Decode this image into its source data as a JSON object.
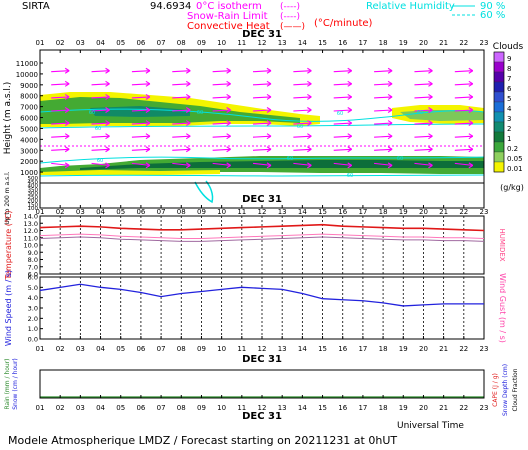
{
  "header": {
    "station": "SIRTA",
    "altitude": "94.6934",
    "legend_isotherm": "0°C isotherm",
    "legend_isotherm_line": "(----)",
    "legend_snow_rain": "Snow-Rain Limit",
    "legend_snow_rain_line": "(----)",
    "legend_convective": "Convective Heat",
    "legend_convective_line": "(——)",
    "legend_convective_unit": "(°C/minute)",
    "rh_label": "Relative Humidity",
    "rh_90": "90 %",
    "rh_60": "60 %"
  },
  "footer": {
    "title": "Modele Atmospherique LMDZ / Forecast starting on 20211231 at 0hUT",
    "time_axis_label": "Universal Time"
  },
  "colors": {
    "temperature": "#e01818",
    "humidex": "#ff77bb",
    "wind": "#2222dd",
    "rain": "#2c8a2c",
    "wind_arrow": "#ff00ff",
    "rh": "#00e0e0",
    "cloud_heavy": "#44aa33",
    "cloud_light": "#eeee00"
  },
  "chart_data": [
    {
      "type": "heatmap",
      "name": "clouds",
      "date_label": "DEC 31",
      "x_ticks": [
        "01",
        "02",
        "03",
        "04",
        "05",
        "06",
        "07",
        "08",
        "09",
        "10",
        "11",
        "12",
        "13",
        "14",
        "15",
        "16",
        "17",
        "18",
        "19",
        "20",
        "21",
        "22",
        "23"
      ],
      "y_ticks_upper": [
        "11000",
        "10000",
        "9000",
        "8000",
        "7000",
        "6000",
        "5000",
        "4000",
        "3000",
        "2000",
        "1000"
      ],
      "y_ticks_lower": [
        "500",
        "450",
        "400",
        "350",
        "300",
        "250",
        "200",
        "150",
        "100"
      ],
      "ylabel": "Height (m a.s.l.)",
      "ylabel_lower": "Up to 200 m a.s.l.",
      "colorbar": {
        "title": "Clouds",
        "unit": "(g/kg)",
        "ticks": [
          "9",
          "8",
          "7",
          "6",
          "5",
          "4",
          "3",
          "2",
          "1",
          "0.2",
          "0.05",
          "0.01"
        ],
        "colors": [
          "#cc66ff",
          "#9900cc",
          "#5500aa",
          "#1f1fb0",
          "#2f4fd0",
          "#1a6ed8",
          "#1090b0",
          "#108a70",
          "#127a3a",
          "#3ba83b",
          "#8ed05e",
          "#f4f400"
        ]
      },
      "isotherm_0c_m": 3000,
      "wind_arrow_levels_m": [
        10200,
        9000,
        7800,
        6600,
        5400,
        4200,
        3000,
        1800
      ]
    },
    {
      "type": "line",
      "name": "temperature",
      "x": [
        "01",
        "02",
        "03",
        "04",
        "05",
        "06",
        "07",
        "08",
        "09",
        "10",
        "11",
        "12",
        "13",
        "14",
        "15",
        "16",
        "17",
        "18",
        "19",
        "20",
        "21",
        "22",
        "23"
      ],
      "ylabel": "Temperature (°C)",
      "ylabel_right": "HUMIDEX",
      "ylim": [
        6.0,
        14.0
      ],
      "y_ticks": [
        "14.0",
        "13.0",
        "12.0",
        "11.0",
        "10.0",
        "9.0",
        "8.0",
        "7.0",
        "6.0"
      ],
      "series": [
        {
          "values": [
            12.4,
            12.5,
            12.6,
            12.5,
            12.3,
            12.2,
            12.1,
            12.1,
            12.2,
            12.3,
            12.4,
            12.5,
            12.6,
            12.7,
            12.8,
            12.6,
            12.5,
            12.4,
            12.3,
            12.3,
            12.2,
            12.1,
            12.0
          ]
        },
        {
          "values": [
            11.3,
            11.4,
            11.5,
            11.4,
            11.2,
            11.1,
            11.0,
            10.9,
            10.9,
            11.0,
            11.1,
            11.2,
            11.3,
            11.4,
            11.5,
            11.4,
            11.3,
            11.2,
            11.1,
            11.1,
            11.0,
            11.0,
            10.9
          ]
        },
        {
          "values": [
            10.9,
            11.0,
            11.1,
            11.0,
            10.8,
            10.7,
            10.6,
            10.5,
            10.5,
            10.6,
            10.7,
            10.8,
            10.9,
            11.0,
            11.1,
            11.0,
            10.9,
            10.8,
            10.7,
            10.7,
            10.6,
            10.6,
            10.5
          ]
        }
      ]
    },
    {
      "type": "line",
      "name": "wind",
      "x": [
        "01",
        "02",
        "03",
        "04",
        "05",
        "06",
        "07",
        "08",
        "09",
        "10",
        "11",
        "12",
        "13",
        "14",
        "15",
        "16",
        "17",
        "18",
        "19",
        "20",
        "21",
        "22",
        "23"
      ],
      "ylabel": "Wind Speed (m / s)",
      "ylabel_right": "Wind Gust (m / s)",
      "ylim": [
        0.0,
        6.0
      ],
      "y_ticks": [
        "6.0",
        "5.0",
        "4.0",
        "3.0",
        "2.0",
        "1.0",
        "0.0"
      ],
      "series": [
        {
          "values": [
            4.7,
            5.0,
            5.3,
            5.0,
            4.8,
            4.5,
            4.1,
            4.4,
            4.6,
            4.8,
            5.0,
            4.9,
            4.8,
            4.4,
            3.9,
            3.8,
            3.7,
            3.5,
            3.2,
            3.3,
            3.4,
            3.4,
            3.4
          ]
        }
      ]
    },
    {
      "type": "line",
      "name": "precipitation",
      "date_label": "DEC 31",
      "x": [
        "01",
        "02",
        "03",
        "04",
        "05",
        "06",
        "07",
        "08",
        "09",
        "10",
        "11",
        "12",
        "13",
        "14",
        "15",
        "16",
        "17",
        "18",
        "19",
        "20",
        "21",
        "22",
        "23"
      ],
      "ylabel": "Rain (mm / hour)",
      "ylabel_2": "Snow (cm / hour)",
      "ylabel_right": "CAPE (J / g)",
      "ylabel_right_2": "Snow Depth (cm)",
      "ylabel_right_3": "Cloud Fraction",
      "series": [
        {
          "values": [
            0,
            0,
            0,
            0,
            0,
            0,
            0,
            0,
            0,
            0,
            0,
            0,
            0,
            0,
            0,
            0,
            0,
            0,
            0,
            0,
            0,
            0,
            0
          ]
        }
      ]
    }
  ]
}
